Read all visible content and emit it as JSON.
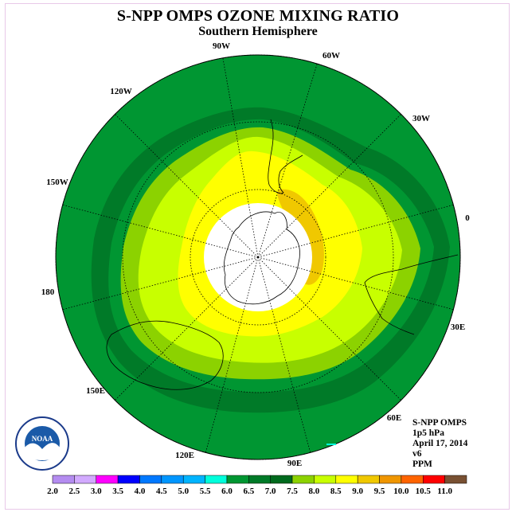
{
  "title": "S-NPP OMPS OZONE MIXING RATIO",
  "subtitle": "Southern Hemisphere",
  "longitude_labels": [
    {
      "text": "90W"
    },
    {
      "text": "60W"
    },
    {
      "text": "30W"
    },
    {
      "text": "0"
    },
    {
      "text": "30E"
    },
    {
      "text": "60E"
    },
    {
      "text": "90E"
    },
    {
      "text": "120E"
    },
    {
      "text": "150E"
    },
    {
      "text": "180"
    },
    {
      "text": "150W"
    },
    {
      "text": "120W"
    }
  ],
  "info": {
    "instrument": "S-NPP OMPS",
    "level": "1p5 hPa",
    "date": "April 17, 2014",
    "version": "v6",
    "units": "PPM"
  },
  "logo": {
    "text": "NOAA"
  },
  "colorbar": {
    "colors": [
      "#b48cf0",
      "#d2aaff",
      "#ff00ff",
      "#0000ff",
      "#0078ff",
      "#0096ff",
      "#00b4ff",
      "#00ffdc",
      "#009632",
      "#007a28",
      "#006a1e",
      "#8cd200",
      "#c8ff00",
      "#ffff00",
      "#f0c800",
      "#f09600",
      "#ff6400",
      "#ff0000",
      "#785032"
    ],
    "labels": [
      "2.0",
      "2.5",
      "3.0",
      "3.5",
      "4.0",
      "4.5",
      "5.0",
      "5.5",
      "6.0",
      "6.5",
      "7.0",
      "7.5",
      "8.0",
      "8.5",
      "9.0",
      "9.5",
      "10.0",
      "10.5",
      "11.0"
    ]
  }
}
